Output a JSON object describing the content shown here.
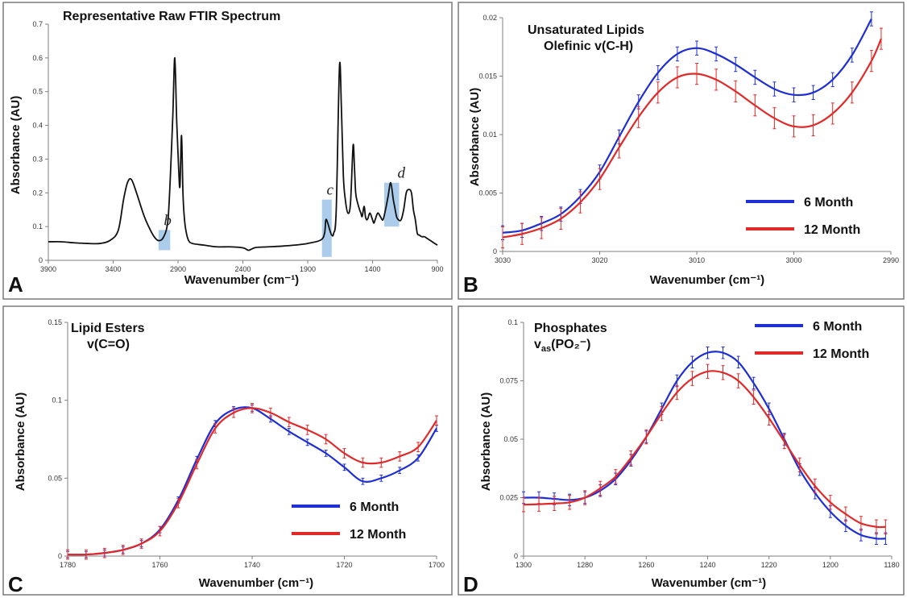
{
  "colors": {
    "six_month": "#1f2fd6",
    "twelve_month": "#e02a2a",
    "spectrum": "#111111",
    "highlight": "#9ec3e8"
  },
  "chart_data": [
    {
      "panel": "A",
      "type": "line",
      "title": "Representative Raw FTIR Spectrum",
      "xlabel": "Wavenumber (cm⁻¹)",
      "ylabel": "Absorbance (AU)",
      "xlim": [
        3900,
        900
      ],
      "ylim": [
        0,
        0.7
      ],
      "x_reversed": true,
      "xticks": [
        3900,
        3400,
        2900,
        2400,
        1900,
        1400,
        900
      ],
      "yticks": [
        0,
        0.1,
        0.2,
        0.3,
        0.4,
        0.5,
        0.6,
        0.7
      ],
      "grid": false,
      "series": [
        {
          "color": "#111111",
          "x": [
            3900,
            3800,
            3700,
            3600,
            3500,
            3420,
            3360,
            3320,
            3290,
            3260,
            3220,
            3160,
            3100,
            3060,
            3030,
            3010,
            2990,
            2975,
            2960,
            2940,
            2925,
            2910,
            2895,
            2885,
            2873,
            2862,
            2852,
            2840,
            2820,
            2790,
            2700,
            2600,
            2500,
            2400,
            2360,
            2340,
            2300,
            2200,
            2100,
            2000,
            1900,
            1800,
            1770,
            1760,
            1745,
            1730,
            1715,
            1700,
            1680,
            1655,
            1640,
            1625,
            1610,
            1590,
            1570,
            1550,
            1540,
            1530,
            1515,
            1500,
            1490,
            1480,
            1465,
            1455,
            1445,
            1435,
            1420,
            1400,
            1390,
            1380,
            1360,
            1340,
            1320,
            1300,
            1280,
            1260,
            1240,
            1230,
            1215,
            1200,
            1180,
            1160,
            1140,
            1120,
            1100,
            1085,
            1070,
            1055,
            1040,
            1020,
            1000,
            980,
            960,
            940,
            920,
            900
          ],
          "y": [
            0.055,
            0.055,
            0.052,
            0.05,
            0.05,
            0.06,
            0.09,
            0.18,
            0.23,
            0.24,
            0.2,
            0.13,
            0.08,
            0.06,
            0.06,
            0.07,
            0.09,
            0.13,
            0.24,
            0.43,
            0.6,
            0.41,
            0.27,
            0.22,
            0.37,
            0.2,
            0.13,
            0.09,
            0.06,
            0.05,
            0.045,
            0.04,
            0.04,
            0.037,
            0.03,
            0.032,
            0.038,
            0.04,
            0.042,
            0.045,
            0.05,
            0.06,
            0.08,
            0.12,
            0.11,
            0.09,
            0.075,
            0.08,
            0.15,
            0.575,
            0.45,
            0.25,
            0.18,
            0.14,
            0.17,
            0.34,
            0.28,
            0.2,
            0.17,
            0.15,
            0.14,
            0.13,
            0.16,
            0.13,
            0.12,
            0.125,
            0.14,
            0.12,
            0.11,
            0.12,
            0.14,
            0.13,
            0.12,
            0.15,
            0.19,
            0.23,
            0.18,
            0.16,
            0.13,
            0.12,
            0.12,
            0.15,
            0.2,
            0.21,
            0.2,
            0.15,
            0.12,
            0.08,
            0.075,
            0.07,
            0.07,
            0.065,
            0.06,
            0.055,
            0.05,
            0.045
          ]
        }
      ],
      "highlight_regions": [
        {
          "label": "b",
          "x0": 3050,
          "x1": 2960,
          "y0": 0.03,
          "y1": 0.09
        },
        {
          "label": "c",
          "x0": 1790,
          "x1": 1715,
          "y0": 0.01,
          "y1": 0.18
        },
        {
          "label": "d",
          "x0": 1310,
          "x1": 1195,
          "y0": 0.1,
          "y1": 0.23
        }
      ],
      "panel_letter": "A"
    },
    {
      "panel": "B",
      "type": "line",
      "title_lines": [
        "Unsaturated Lipids",
        "Olefinic v(C-H)"
      ],
      "xlabel": "Wavenumber (cm⁻¹)",
      "ylabel": "Absorbance (AU)",
      "xlim": [
        3030,
        2990
      ],
      "ylim": [
        0,
        0.02
      ],
      "x_reversed": true,
      "xticks": [
        3030,
        3020,
        3010,
        3000,
        2990
      ],
      "yticks": [
        0,
        0.005,
        0.01,
        0.015,
        0.02
      ],
      "grid": false,
      "legend_position": "bottom-right",
      "series": [
        {
          "name": "6 Month",
          "color": "#1f2fd6",
          "err": 0.0006,
          "x": [
            3030,
            3028,
            3026,
            3024,
            3022,
            3020,
            3018,
            3016,
            3014,
            3012,
            3010,
            3008,
            3006,
            3004,
            3002,
            3000,
            2998,
            2996,
            2994,
            2992
          ],
          "y": [
            0.0016,
            0.0018,
            0.0024,
            0.0032,
            0.0047,
            0.0068,
            0.0098,
            0.0128,
            0.0153,
            0.0169,
            0.0174,
            0.0169,
            0.016,
            0.0149,
            0.0139,
            0.0134,
            0.0136,
            0.0147,
            0.0168,
            0.0199
          ]
        },
        {
          "name": "12 Month",
          "color": "#e02a2a",
          "err": 0.0009,
          "x": [
            3030,
            3028,
            3026,
            3024,
            3022,
            3020,
            3018,
            3016,
            3014,
            3012,
            3010,
            3008,
            3006,
            3004,
            3002,
            3000,
            2998,
            2996,
            2994,
            2992,
            2991
          ],
          "y": [
            0.0012,
            0.0015,
            0.002,
            0.0028,
            0.0042,
            0.0062,
            0.0089,
            0.0115,
            0.0136,
            0.0149,
            0.0152,
            0.0147,
            0.0137,
            0.0125,
            0.0114,
            0.0107,
            0.0108,
            0.0118,
            0.0136,
            0.0163,
            0.0182
          ]
        }
      ],
      "panel_letter": "B"
    },
    {
      "panel": "C",
      "type": "line",
      "title_lines": [
        "Lipid Esters",
        "v(C=O)"
      ],
      "xlabel": "Wavenumber (cm⁻¹)",
      "ylabel": "Absorbance (AU)",
      "xlim": [
        1780,
        1700
      ],
      "ylim": [
        0,
        0.15
      ],
      "x_reversed": true,
      "xticks": [
        1780,
        1760,
        1740,
        1720,
        1700
      ],
      "yticks": [
        0,
        0.05,
        0.1,
        0.15
      ],
      "ytick_labels": [
        "0",
        "0.05",
        "0.1",
        "0.15"
      ],
      "grid": false,
      "legend_position": "bottom-right",
      "series": [
        {
          "name": "6 Month",
          "color": "#1f2fd6",
          "err": 0.002,
          "x": [
            1780,
            1776,
            1772,
            1768,
            1764,
            1760,
            1756,
            1752,
            1748,
            1744,
            1740,
            1736,
            1732,
            1728,
            1724,
            1720,
            1716,
            1712,
            1708,
            1704,
            1700
          ],
          "y": [
            0.001,
            0.001,
            0.002,
            0.004,
            0.008,
            0.017,
            0.036,
            0.062,
            0.085,
            0.094,
            0.095,
            0.088,
            0.08,
            0.073,
            0.066,
            0.057,
            0.048,
            0.05,
            0.055,
            0.063,
            0.082
          ]
        },
        {
          "name": "12 Month",
          "color": "#e02a2a",
          "err": 0.003,
          "x": [
            1780,
            1776,
            1772,
            1768,
            1764,
            1760,
            1756,
            1752,
            1748,
            1744,
            1740,
            1736,
            1732,
            1728,
            1724,
            1720,
            1716,
            1712,
            1708,
            1704,
            1700
          ],
          "y": [
            0.001,
            0.001,
            0.002,
            0.004,
            0.008,
            0.016,
            0.034,
            0.059,
            0.082,
            0.092,
            0.095,
            0.092,
            0.086,
            0.081,
            0.075,
            0.066,
            0.06,
            0.06,
            0.064,
            0.07,
            0.087
          ]
        }
      ],
      "panel_letter": "C"
    },
    {
      "panel": "D",
      "type": "line",
      "title_lines": [
        "Phosphates",
        "v_as(PO₂⁻)"
      ],
      "xlabel": "Wavenumber (cm⁻¹)",
      "ylabel": "Absorbance (AU)",
      "xlim": [
        1300,
        1180
      ],
      "ylim": [
        0,
        0.1
      ],
      "x_reversed": true,
      "xticks": [
        1300,
        1280,
        1260,
        1240,
        1220,
        1200,
        1180
      ],
      "yticks": [
        0,
        0.025,
        0.05,
        0.075,
        0.1
      ],
      "grid": false,
      "legend_position": "top-right",
      "series": [
        {
          "name": "6 Month",
          "color": "#1f2fd6",
          "err": 0.0025,
          "x": [
            1300,
            1295,
            1290,
            1285,
            1280,
            1275,
            1270,
            1265,
            1260,
            1255,
            1250,
            1245,
            1240,
            1235,
            1230,
            1225,
            1220,
            1215,
            1210,
            1205,
            1200,
            1195,
            1190,
            1185,
            1182
          ],
          "y": [
            0.025,
            0.025,
            0.0245,
            0.024,
            0.025,
            0.028,
            0.033,
            0.041,
            0.051,
            0.063,
            0.075,
            0.083,
            0.087,
            0.087,
            0.083,
            0.074,
            0.063,
            0.05,
            0.037,
            0.027,
            0.019,
            0.013,
            0.009,
            0.0075,
            0.0075
          ]
        },
        {
          "name": "12 Month",
          "color": "#e02a2a",
          "err": 0.003,
          "x": [
            1300,
            1295,
            1290,
            1285,
            1280,
            1275,
            1270,
            1265,
            1260,
            1255,
            1250,
            1245,
            1240,
            1235,
            1230,
            1225,
            1220,
            1215,
            1210,
            1205,
            1200,
            1195,
            1190,
            1185,
            1182
          ],
          "y": [
            0.022,
            0.0222,
            0.0225,
            0.023,
            0.025,
            0.029,
            0.034,
            0.042,
            0.051,
            0.061,
            0.07,
            0.076,
            0.079,
            0.0785,
            0.075,
            0.068,
            0.059,
            0.049,
            0.039,
            0.03,
            0.023,
            0.018,
            0.014,
            0.0125,
            0.0125
          ]
        }
      ],
      "panel_letter": "D"
    }
  ]
}
